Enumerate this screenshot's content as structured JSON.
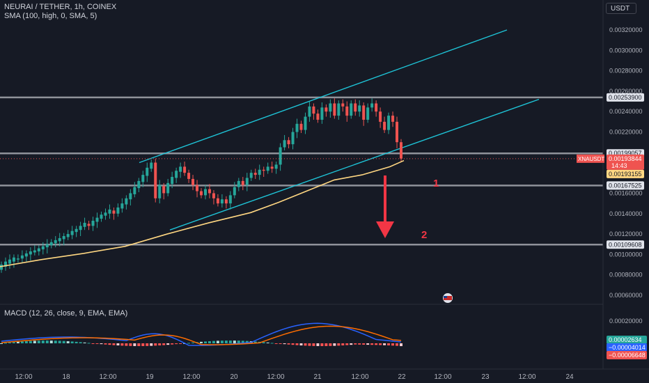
{
  "header": {
    "symbol_line": "NEURAI / TETHER, 1h, COINEX",
    "sma_line": "SMA (100, high, 0, SMA, 5)",
    "macd_line": "MACD (12, 26, close, 9, EMA, EMA)",
    "currency_button": "USDT"
  },
  "colors": {
    "background": "#161a25",
    "up_candle": "#26a69a",
    "down_candle": "#ef5350",
    "channel": "#1ec3d6",
    "sma": "#ffd782",
    "level_line": "#8f929a",
    "macd_line": "#2962ff",
    "signal_line": "#ff6d00",
    "arrow": "#f23645"
  },
  "chart_data": [
    {
      "type": "candlestick",
      "title": "NEURAI / TETHER, 1h, COINEX",
      "y_unit": "USDT",
      "ylim": [
        0.0005,
        0.0034
      ],
      "y_ticks": [
        "0.00320000",
        "0.00300000",
        "0.00280000",
        "0.00260000",
        "0.00240000",
        "0.00220000",
        "0.00160000",
        "0.00140000",
        "0.00120000",
        "0.00100000",
        "0.00080000",
        "0.00060000"
      ],
      "x_ticks": [
        "12:00",
        "18",
        "12:00",
        "19",
        "12:00",
        "20",
        "12:00",
        "21",
        "12:00",
        "22",
        "12:00",
        "23",
        "12:00",
        "24"
      ],
      "candles": [
        [
          0.00085,
          0.0009
        ],
        [
          0.00088,
          0.00093
        ],
        [
          0.00091,
          0.00095
        ],
        [
          0.00093,
          0.00097
        ],
        [
          0.00095,
          0.00096
        ],
        [
          0.00096,
          0.00099
        ],
        [
          0.00098,
          0.00101
        ],
        [
          0.001,
          0.00103
        ],
        [
          0.00102,
          0.00104
        ],
        [
          0.00103,
          0.00106
        ],
        [
          0.00105,
          0.00108
        ],
        [
          0.00107,
          0.0011
        ],
        [
          0.00109,
          0.00112
        ],
        [
          0.00111,
          0.00114
        ],
        [
          0.00113,
          0.00116
        ],
        [
          0.00115,
          0.00118
        ],
        [
          0.00117,
          0.0012
        ],
        [
          0.00119,
          0.00123
        ],
        [
          0.00122,
          0.00125
        ],
        [
          0.00124,
          0.00128
        ],
        [
          0.00127,
          0.00131
        ],
        [
          0.0013,
          0.00128
        ],
        [
          0.00128,
          0.00133
        ],
        [
          0.00132,
          0.00136
        ],
        [
          0.00135,
          0.00139
        ],
        [
          0.00138,
          0.00141
        ],
        [
          0.0014,
          0.00144
        ],
        [
          0.00143,
          0.0014
        ],
        [
          0.0014,
          0.00146
        ],
        [
          0.00145,
          0.0015
        ],
        [
          0.00149,
          0.00155
        ],
        [
          0.00154,
          0.0016
        ],
        [
          0.00159,
          0.00166
        ],
        [
          0.00165,
          0.00172
        ],
        [
          0.00171,
          0.00178
        ],
        [
          0.00177,
          0.00185
        ],
        [
          0.00184,
          0.0019
        ],
        [
          0.0019,
          0.00155
        ],
        [
          0.00155,
          0.00168
        ],
        [
          0.00167,
          0.0016
        ],
        [
          0.0016,
          0.0017
        ],
        [
          0.00169,
          0.00176
        ],
        [
          0.00175,
          0.00182
        ],
        [
          0.00181,
          0.00186
        ],
        [
          0.00186,
          0.0018
        ],
        [
          0.0018,
          0.00174
        ],
        [
          0.00174,
          0.00168
        ],
        [
          0.00168,
          0.00162
        ],
        [
          0.00162,
          0.00158
        ],
        [
          0.00158,
          0.00164
        ],
        [
          0.00164,
          0.0016
        ],
        [
          0.0016,
          0.00155
        ],
        [
          0.00155,
          0.0015
        ],
        [
          0.0015,
          0.00154
        ],
        [
          0.00154,
          0.0015
        ],
        [
          0.0015,
          0.00158
        ],
        [
          0.00158,
          0.00166
        ],
        [
          0.00166,
          0.00172
        ],
        [
          0.00172,
          0.00168
        ],
        [
          0.00168,
          0.00175
        ],
        [
          0.00175,
          0.0018
        ],
        [
          0.0018,
          0.00178
        ],
        [
          0.00178,
          0.00183
        ],
        [
          0.00183,
          0.00182
        ],
        [
          0.00182,
          0.00186
        ],
        [
          0.00186,
          0.00184
        ],
        [
          0.00184,
          0.00188
        ],
        [
          0.00188,
          0.00205
        ],
        [
          0.00205,
          0.00212
        ],
        [
          0.00212,
          0.00208
        ],
        [
          0.00208,
          0.0022
        ],
        [
          0.0022,
          0.00228
        ],
        [
          0.00228,
          0.00222
        ],
        [
          0.00222,
          0.00235
        ],
        [
          0.00235,
          0.00245
        ],
        [
          0.00245,
          0.00238
        ],
        [
          0.00238,
          0.00232
        ],
        [
          0.00232,
          0.00244
        ],
        [
          0.00244,
          0.0024
        ],
        [
          0.0024,
          0.00248
        ],
        [
          0.00248,
          0.00236
        ],
        [
          0.00236,
          0.00248
        ],
        [
          0.00248,
          0.00245
        ],
        [
          0.00245,
          0.00236
        ],
        [
          0.00236,
          0.00248
        ],
        [
          0.00248,
          0.0024
        ],
        [
          0.0024,
          0.00246
        ],
        [
          0.00246,
          0.00232
        ],
        [
          0.00232,
          0.00244
        ],
        [
          0.00244,
          0.00248
        ],
        [
          0.00248,
          0.0024
        ],
        [
          0.0024,
          0.0023
        ],
        [
          0.0023,
          0.00222
        ],
        [
          0.00222,
          0.00236
        ],
        [
          0.00236,
          0.0023
        ],
        [
          0.0023,
          0.0021
        ],
        [
          0.0021,
          0.00194
        ]
      ],
      "sma_100_high": [
        [
          0,
          0.00088
        ],
        [
          60,
          0.00095
        ],
        [
          120,
          0.00101
        ],
        [
          180,
          0.00108
        ],
        [
          240,
          0.0012
        ],
        [
          300,
          0.00131
        ],
        [
          360,
          0.00141
        ],
        [
          400,
          0.00151
        ],
        [
          440,
          0.00162
        ],
        [
          480,
          0.00173
        ],
        [
          520,
          0.00178
        ],
        [
          560,
          0.00186
        ],
        [
          580,
          0.00192
        ]
      ],
      "channel_lines": [
        {
          "from": [
            200,
            0.0019
          ],
          "to": [
            728,
            0.0032
          ]
        },
        {
          "from": [
            244,
            0.00124
          ],
          "to": [
            774,
            0.00252
          ]
        }
      ],
      "levels": [
        {
          "value": 0.002539,
          "label": "0.00253900"
        },
        {
          "value": 0.00199057,
          "label": "0.00199057"
        },
        {
          "value": 0.00167525,
          "label": "0.00167525"
        },
        {
          "value": 0.00109608,
          "label": "0.00109608"
        }
      ],
      "price_tag": {
        "symbol": "XNAUSDT",
        "price": "0.00193844",
        "countdown": "14:43"
      },
      "sma_tag": "0.00193155",
      "annotations": [
        "1",
        "2"
      ]
    },
    {
      "type": "macd",
      "title": "MACD (12, 26, close, 9, EMA, EMA)",
      "y_ticks": [
        "0.00020000"
      ],
      "tags": {
        "histogram": "0.00002634",
        "macd": "−0.00004014",
        "signal": "−0.00006648"
      }
    }
  ]
}
